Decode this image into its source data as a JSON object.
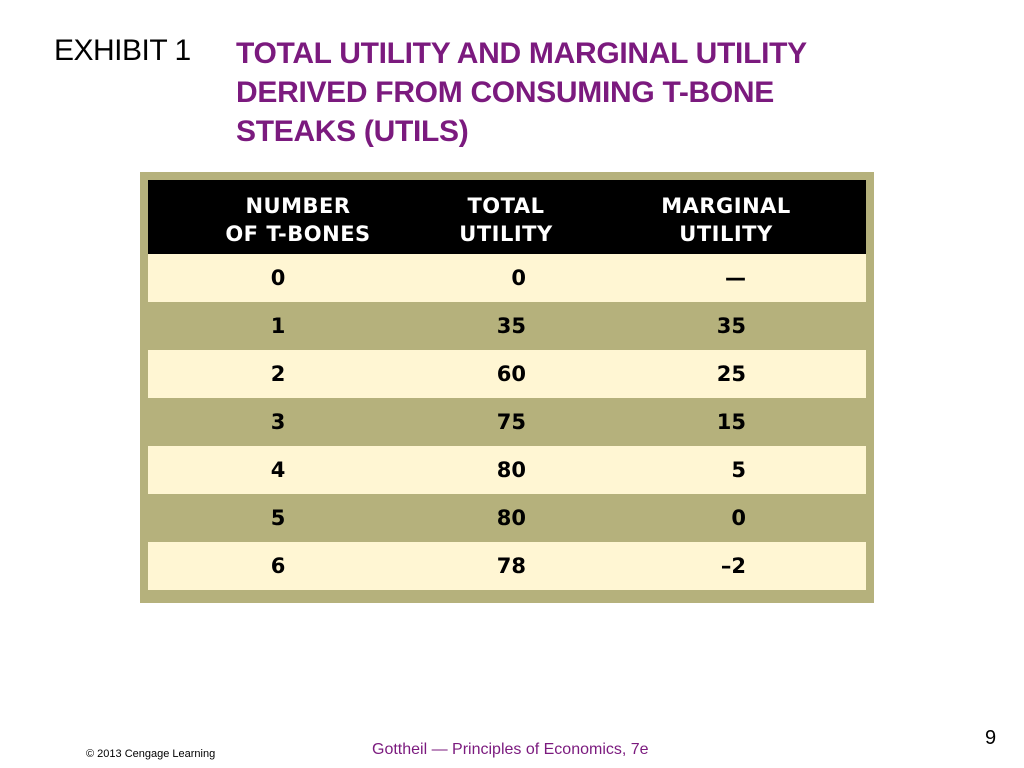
{
  "exhibit": {
    "label": "EXHIBIT 1",
    "title_lines": [
      "TOTAL UTILITY AND MARGINAL UTILITY",
      "DERIVED FROM CONSUMING T-BONE",
      "STEAKS (UTILS)"
    ]
  },
  "table": {
    "headers": [
      [
        "NUMBER",
        "OF T-BONES"
      ],
      [
        "TOTAL",
        "UTILITY"
      ],
      [
        "MARGINAL",
        "UTILITY"
      ]
    ],
    "rows": [
      [
        "0",
        "0",
        "—"
      ],
      [
        "1",
        "35",
        "35"
      ],
      [
        "2",
        "60",
        "25"
      ],
      [
        "3",
        "75",
        "15"
      ],
      [
        "4",
        "80",
        "5"
      ],
      [
        "5",
        "80",
        "0"
      ],
      [
        "6",
        "78",
        "–2"
      ]
    ]
  },
  "footer": {
    "copyright": "© 2013 Cengage Learning",
    "source": "Gottheil — Principles of Economics, 7e",
    "page_number": "9"
  },
  "colors": {
    "title": "#7B1A7E",
    "frame": "#B5B17C",
    "light_row": "#FFF6D3",
    "header": "#000000"
  }
}
